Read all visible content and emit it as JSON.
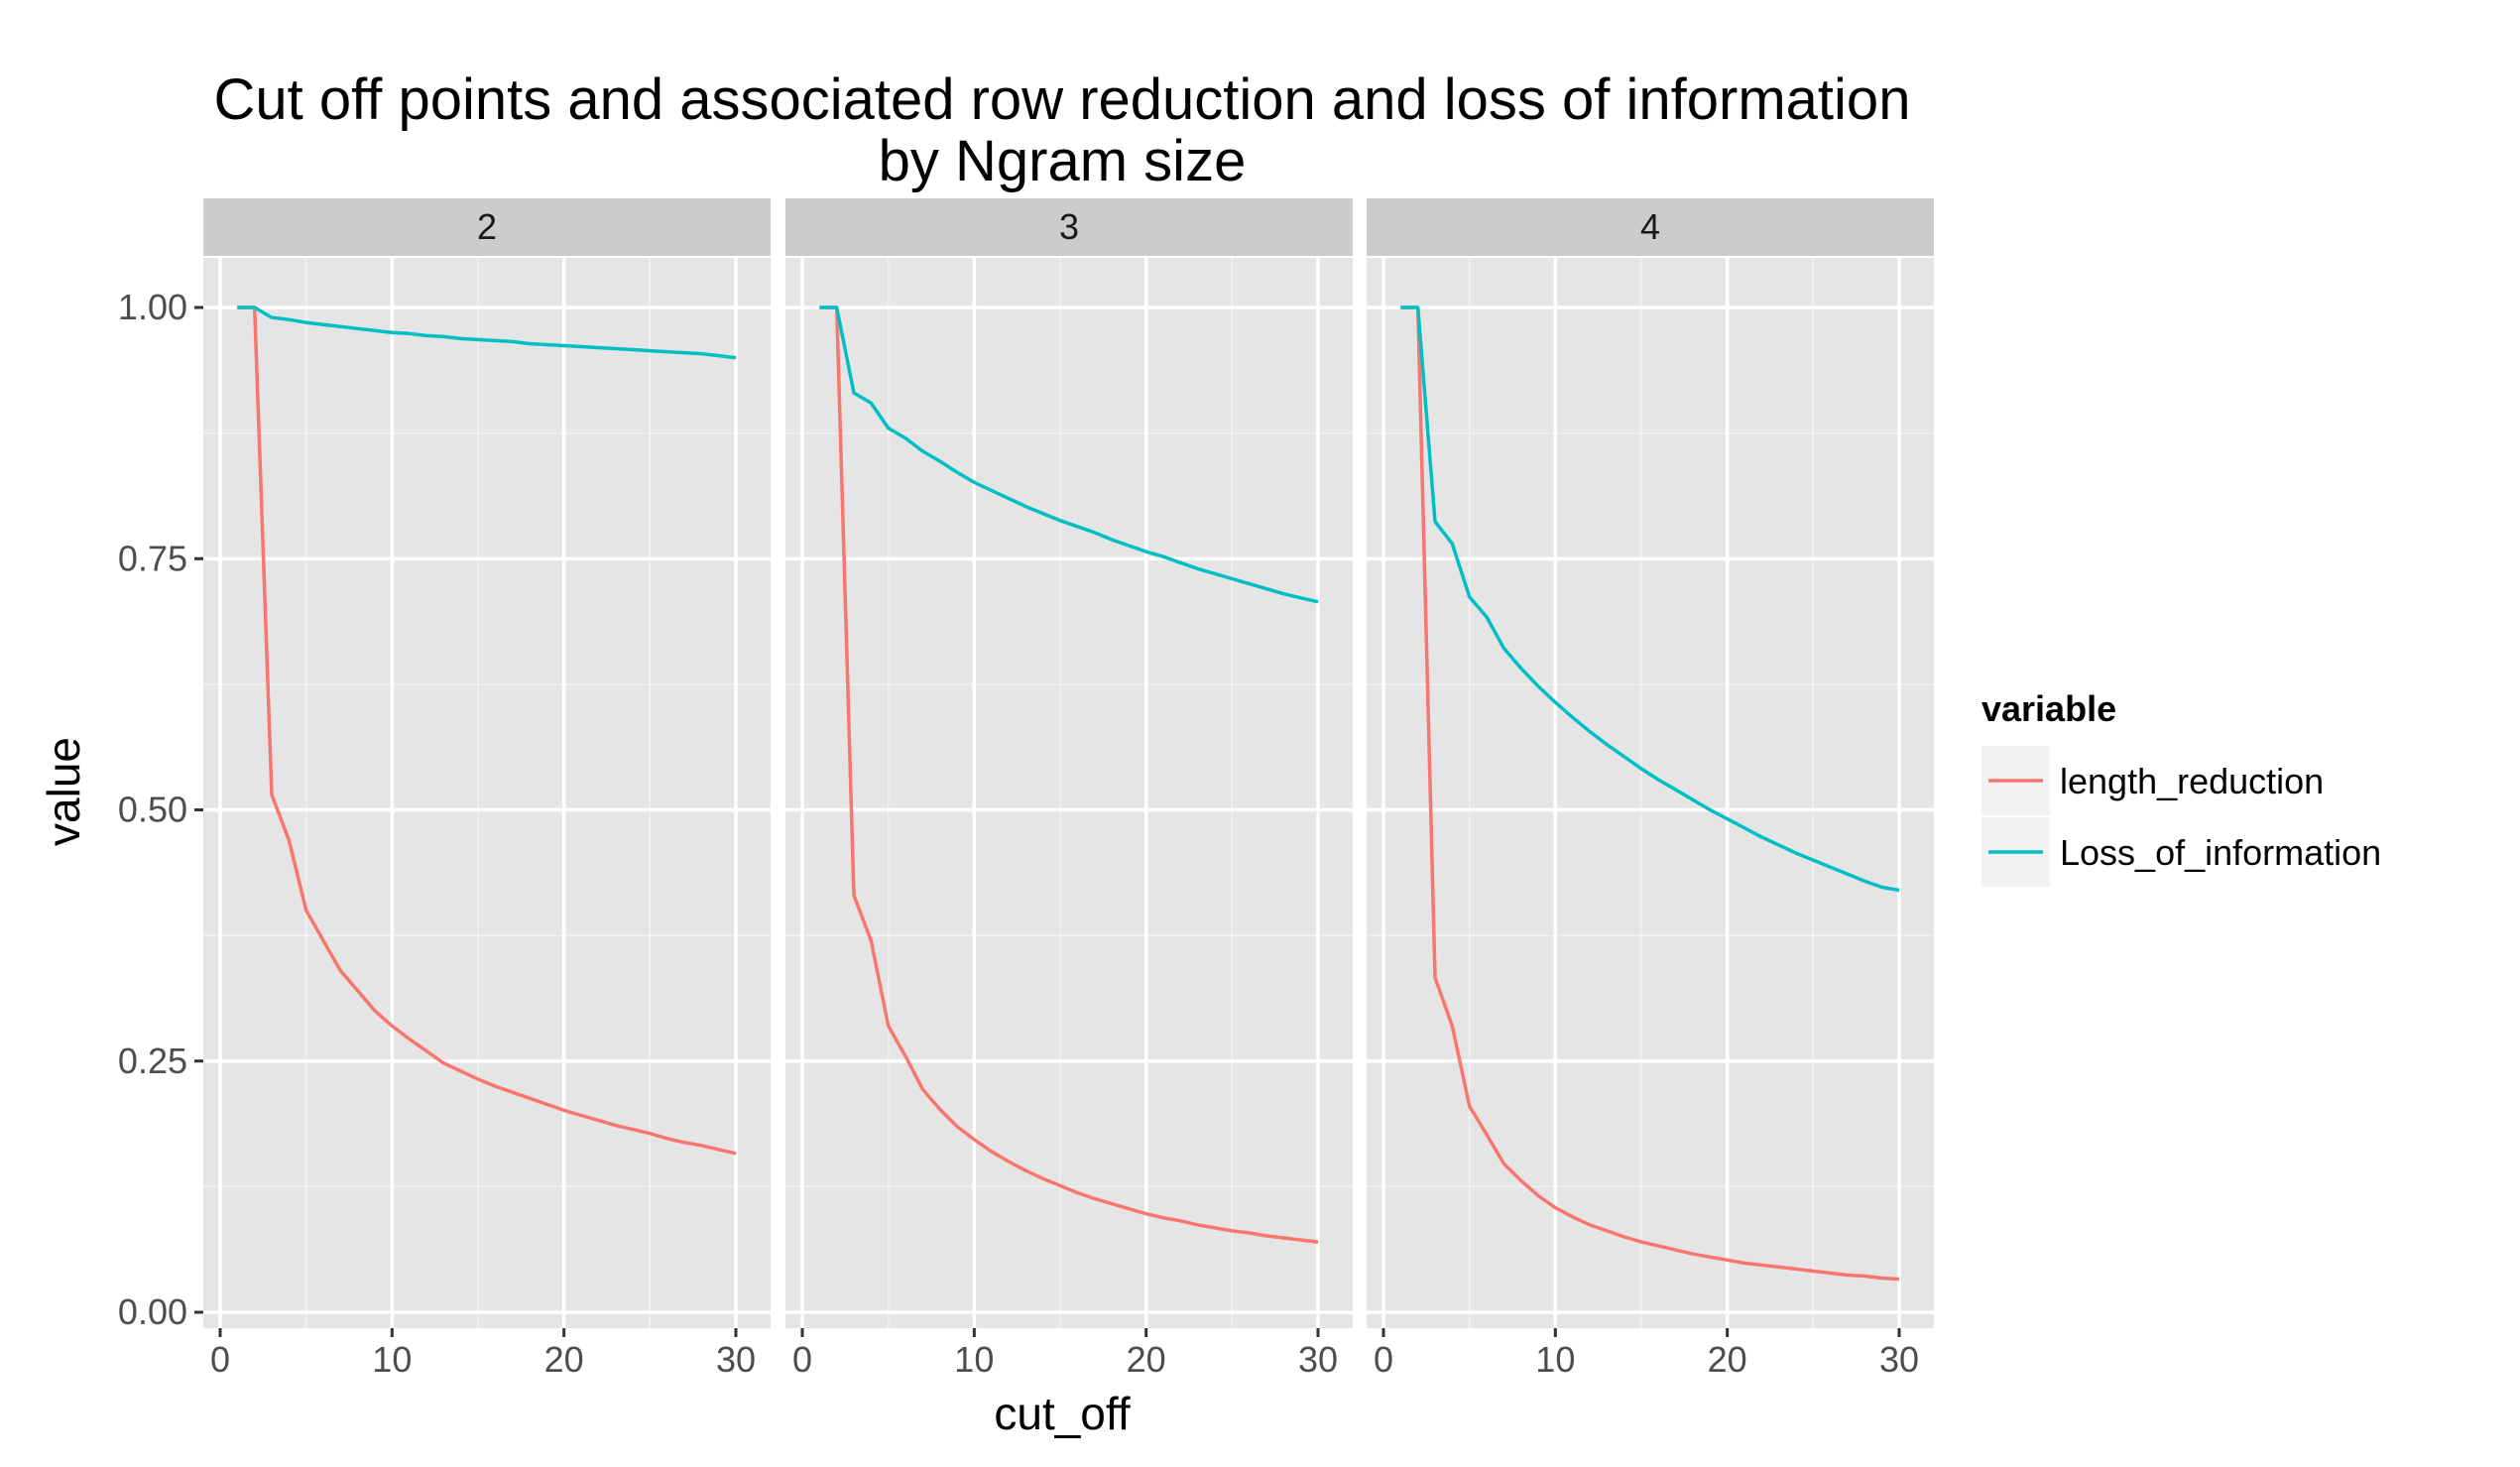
{
  "chart_data": {
    "type": "line",
    "title": "Cut off points and associated row reduction and loss of information",
    "subtitle": "by Ngram size",
    "xlabel": "cut_off",
    "ylabel": "value",
    "xlim": [
      0,
      30
    ],
    "ylim": [
      0,
      1
    ],
    "x_ticks": [
      "0",
      "10",
      "20",
      "30"
    ],
    "y_ticks": [
      "0.00",
      "0.25",
      "0.50",
      "0.75",
      "1.00"
    ],
    "grid": true,
    "legend": {
      "title": "variable",
      "position": "right",
      "entries": [
        "length_reduction",
        "Loss_of_information"
      ]
    },
    "colors": {
      "length_reduction": "#F8766D",
      "Loss_of_information": "#00BFC4",
      "panel_bg": "#E5E5E5",
      "strip_bg": "#CCCCCC",
      "grid": "#FFFFFF"
    },
    "panels": [
      {
        "label": "2",
        "series": [
          {
            "name": "length_reduction",
            "x": [
              1,
              2,
              3,
              4,
              5,
              6,
              7,
              8,
              9,
              10,
              11,
              12,
              13,
              14,
              15,
              16,
              17,
              18,
              19,
              20,
              21,
              22,
              23,
              24,
              25,
              26,
              27,
              28,
              29,
              30
            ],
            "values": [
              1.0,
              1.0,
              0.515,
              0.47,
              0.4,
              0.37,
              0.34,
              0.32,
              0.3,
              0.285,
              0.272,
              0.26,
              0.248,
              0.24,
              0.232,
              0.225,
              0.219,
              0.213,
              0.207,
              0.201,
              0.196,
              0.191,
              0.186,
              0.182,
              0.178,
              0.173,
              0.169,
              0.166,
              0.162,
              0.158
            ]
          },
          {
            "name": "Loss_of_information",
            "x": [
              1,
              2,
              3,
              4,
              5,
              6,
              7,
              8,
              9,
              10,
              11,
              12,
              13,
              14,
              15,
              16,
              17,
              18,
              19,
              20,
              21,
              22,
              23,
              24,
              25,
              26,
              27,
              28,
              29,
              30
            ],
            "values": [
              1.0,
              1.0,
              0.99,
              0.988,
              0.985,
              0.983,
              0.981,
              0.979,
              0.977,
              0.975,
              0.974,
              0.972,
              0.971,
              0.969,
              0.968,
              0.967,
              0.966,
              0.964,
              0.963,
              0.962,
              0.961,
              0.96,
              0.959,
              0.958,
              0.957,
              0.956,
              0.955,
              0.954,
              0.952,
              0.95
            ]
          }
        ]
      },
      {
        "label": "3",
        "series": [
          {
            "name": "length_reduction",
            "x": [
              1,
              2,
              3,
              4,
              5,
              6,
              7,
              8,
              9,
              10,
              11,
              12,
              13,
              14,
              15,
              16,
              17,
              18,
              19,
              20,
              21,
              22,
              23,
              24,
              25,
              26,
              27,
              28,
              29,
              30
            ],
            "values": [
              1.0,
              1.0,
              0.415,
              0.37,
              0.285,
              0.255,
              0.222,
              0.202,
              0.185,
              0.172,
              0.16,
              0.15,
              0.141,
              0.133,
              0.126,
              0.119,
              0.113,
              0.108,
              0.103,
              0.098,
              0.094,
              0.091,
              0.087,
              0.084,
              0.081,
              0.079,
              0.076,
              0.074,
              0.072,
              0.07
            ]
          },
          {
            "name": "Loss_of_information",
            "x": [
              1,
              2,
              3,
              4,
              5,
              6,
              7,
              8,
              9,
              10,
              11,
              12,
              13,
              14,
              15,
              16,
              17,
              18,
              19,
              20,
              21,
              22,
              23,
              24,
              25,
              26,
              27,
              28,
              29,
              30
            ],
            "values": [
              1.0,
              1.0,
              0.915,
              0.905,
              0.88,
              0.87,
              0.857,
              0.847,
              0.836,
              0.826,
              0.818,
              0.81,
              0.802,
              0.795,
              0.788,
              0.782,
              0.776,
              0.769,
              0.763,
              0.757,
              0.752,
              0.746,
              0.74,
              0.735,
              0.73,
              0.725,
              0.72,
              0.715,
              0.711,
              0.707
            ]
          }
        ]
      },
      {
        "label": "4",
        "series": [
          {
            "name": "length_reduction",
            "x": [
              1,
              2,
              3,
              4,
              5,
              6,
              7,
              8,
              9,
              10,
              11,
              12,
              13,
              14,
              15,
              16,
              17,
              18,
              19,
              20,
              21,
              22,
              23,
              24,
              25,
              26,
              27,
              28,
              29,
              30
            ],
            "values": [
              1.0,
              1.0,
              0.333,
              0.285,
              0.205,
              0.177,
              0.148,
              0.131,
              0.116,
              0.104,
              0.095,
              0.087,
              0.081,
              0.075,
              0.07,
              0.066,
              0.062,
              0.058,
              0.055,
              0.052,
              0.049,
              0.047,
              0.045,
              0.043,
              0.041,
              0.039,
              0.037,
              0.036,
              0.034,
              0.033
            ]
          },
          {
            "name": "Loss_of_information",
            "x": [
              1,
              2,
              3,
              4,
              5,
              6,
              7,
              8,
              9,
              10,
              11,
              12,
              13,
              14,
              15,
              16,
              17,
              18,
              19,
              20,
              21,
              22,
              23,
              24,
              25,
              26,
              27,
              28,
              29,
              30
            ],
            "values": [
              1.0,
              1.0,
              0.787,
              0.765,
              0.712,
              0.692,
              0.661,
              0.641,
              0.623,
              0.607,
              0.592,
              0.578,
              0.565,
              0.553,
              0.541,
              0.53,
              0.52,
              0.51,
              0.5,
              0.491,
              0.482,
              0.473,
              0.465,
              0.457,
              0.45,
              0.443,
              0.436,
              0.429,
              0.423,
              0.42
            ]
          }
        ]
      }
    ]
  }
}
